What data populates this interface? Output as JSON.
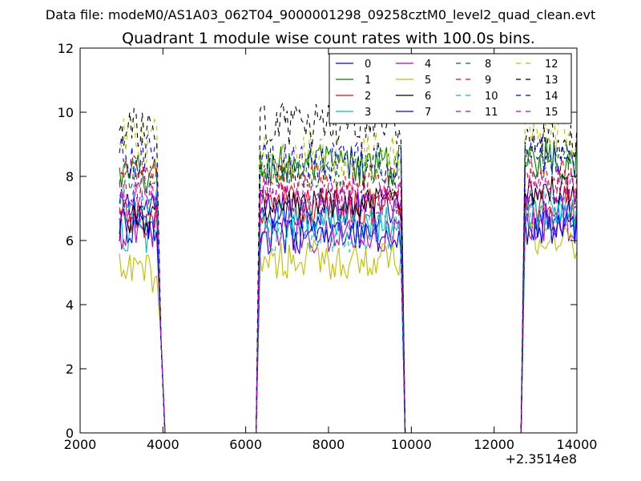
{
  "page": {
    "suptitle": "Data file: modeM0/AS1A03_062T04_9000001298_09258cztM0_level2_quad_clean.evt"
  },
  "chart_data": {
    "type": "line",
    "title": "Quadrant 1 module wise count rates with 100.0s bins.",
    "xlabel": "",
    "ylabel": "",
    "xlim": [
      2000,
      14000
    ],
    "ylim": [
      0,
      12
    ],
    "x_offset_label": "+2.3514e8",
    "xticks": [
      2000,
      4000,
      6000,
      8000,
      10000,
      12000,
      14000
    ],
    "yticks": [
      0,
      2,
      4,
      6,
      8,
      10,
      12
    ],
    "grid": false,
    "legend_position": "top-right",
    "legend_columns": 4,
    "segments": [
      {
        "x_start": 2950,
        "x_end": 3850
      },
      {
        "x_start": 6350,
        "x_end": 9750
      },
      {
        "x_start": 12750,
        "x_end": 14000
      }
    ],
    "gap_points": {
      "x": [
        3950,
        4050,
        6150,
        6250,
        9850,
        9950,
        12550,
        12650
      ],
      "y": [
        3.0,
        0,
        0,
        0,
        0,
        0,
        0,
        0
      ]
    },
    "series": [
      {
        "name": "0",
        "color": "#0000ff",
        "dash": "solid",
        "levels": [
          7.0,
          6.9,
          6.9
        ],
        "amp": 0.35
      },
      {
        "name": "1",
        "color": "#008000",
        "dash": "solid",
        "levels": [
          8.0,
          8.3,
          8.6
        ],
        "amp": 0.4
      },
      {
        "name": "2",
        "color": "#ff0000",
        "dash": "solid",
        "levels": [
          6.7,
          7.1,
          7.1
        ],
        "amp": 0.35
      },
      {
        "name": "3",
        "color": "#00bfbf",
        "dash": "solid",
        "levels": [
          6.2,
          6.6,
          6.8
        ],
        "amp": 0.35
      },
      {
        "name": "4",
        "color": "#bf00bf",
        "dash": "solid",
        "levels": [
          6.2,
          6.2,
          6.6
        ],
        "amp": 0.35
      },
      {
        "name": "5",
        "color": "#bfbf00",
        "dash": "solid",
        "levels": [
          5.0,
          5.4,
          6.0
        ],
        "amp": 0.35
      },
      {
        "name": "6",
        "color": "#000000",
        "dash": "solid",
        "levels": [
          6.7,
          7.1,
          7.6
        ],
        "amp": 0.3
      },
      {
        "name": "7",
        "color": "#0000ff",
        "dash": "solid",
        "levels": [
          6.4,
          6.1,
          6.4
        ],
        "amp": 0.3
      },
      {
        "name": "8",
        "color": "#008000",
        "dash": "dashed",
        "levels": [
          7.8,
          8.1,
          8.5
        ],
        "amp": 0.35
      },
      {
        "name": "9",
        "color": "#ff0000",
        "dash": "dashed",
        "levels": [
          8.1,
          7.9,
          8.0
        ],
        "amp": 0.35
      },
      {
        "name": "10",
        "color": "#00bfbf",
        "dash": "dashed",
        "levels": [
          7.1,
          6.3,
          7.0
        ],
        "amp": 0.4
      },
      {
        "name": "11",
        "color": "#bf00bf",
        "dash": "dashed",
        "levels": [
          7.1,
          7.3,
          7.6
        ],
        "amp": 0.35
      },
      {
        "name": "12",
        "color": "#bfbf00",
        "dash": "dashed",
        "levels": [
          9.1,
          8.7,
          9.4
        ],
        "amp": 0.4
      },
      {
        "name": "13",
        "color": "#000000",
        "dash": "dashed",
        "levels": [
          9.4,
          9.6,
          9.2
        ],
        "amp": 0.4
      },
      {
        "name": "14",
        "color": "#0000ff",
        "dash": "dashed",
        "levels": [
          8.6,
          8.4,
          8.7
        ],
        "amp": 0.4
      },
      {
        "name": "15",
        "color": "#bf00bf",
        "dash": "dashed",
        "levels": [
          7.6,
          7.4,
          7.7
        ],
        "amp": 0.35
      }
    ]
  }
}
